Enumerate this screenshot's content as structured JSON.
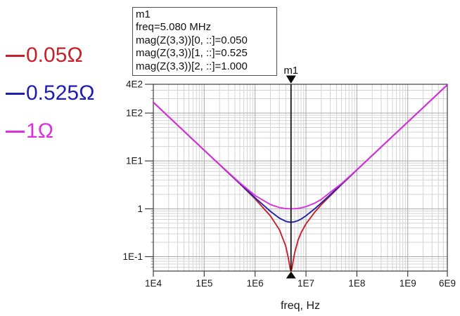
{
  "colors": {
    "grid_minor": "#d4d4d4",
    "grid_major": "#a8a8a8",
    "frame": "#3c3c3c",
    "tick": "#3c3c3c",
    "marker": "#0d0d0d",
    "text": "#1a1a1a"
  },
  "legend": {
    "items": [
      {
        "label": "0.05Ω",
        "color": "#c81f28"
      },
      {
        "label": "0.525Ω",
        "color": "#1e1eb0"
      },
      {
        "label": "1Ω",
        "color": "#dd30dd"
      }
    ]
  },
  "marker_box": {
    "lines": [
      "m1",
      "freq=5.080 MHz",
      "mag(Z(3,3))[0, ::]=0.050",
      "mag(Z(3,3))[1, ::]=0.525",
      "mag(Z(3,3))[2, ::]=1.000"
    ]
  },
  "chart_data": {
    "type": "line",
    "title": "",
    "xlabel": "freq, Hz",
    "ylabel": "",
    "x_scale": "log",
    "y_scale": "log",
    "xlim": [
      10000,
      6000000000
    ],
    "ylim": [
      0.05,
      400
    ],
    "grid": true,
    "legend_position": "left-outside",
    "x_ticks": [
      {
        "label": "1E4",
        "value": 10000
      },
      {
        "label": "1E5",
        "value": 100000
      },
      {
        "label": "1E6",
        "value": 1000000
      },
      {
        "label": "1E7",
        "value": 10000000
      },
      {
        "label": "1E8",
        "value": 100000000
      },
      {
        "label": "1E9",
        "value": 1000000000
      },
      {
        "label": "6E9",
        "value": 6000000000
      }
    ],
    "y_ticks": [
      {
        "label": "4E2",
        "value": 400
      },
      {
        "label": "1E2",
        "value": 100
      },
      {
        "label": "1E1",
        "value": 10
      },
      {
        "label": "1",
        "value": 1
      },
      {
        "label": "1E-1",
        "value": 0.1
      }
    ],
    "x": [
      10000,
      20000,
      50000,
      100000,
      200000,
      500000,
      1000000,
      2000000,
      3000000,
      4000000,
      4500000,
      4900000,
      5080000,
      5300000,
      5600000,
      6000000,
      7000000,
      8000000,
      10000000,
      15000000,
      20000000,
      50000000,
      100000000,
      200000000,
      500000000,
      1000000000,
      2000000000,
      6000000000
    ],
    "series": [
      {
        "name": "mag(Z(3,3)) R=0.05 ohm",
        "legend": "0.05Ω",
        "color": "#c8202a",
        "values": [
          167.6,
          83.8,
          33.5,
          16.76,
          8.38,
          3.35,
          1.612,
          0.71,
          0.367,
          0.167,
          0.0945,
          0.0554,
          0.05,
          0.0573,
          0.0815,
          0.121,
          0.221,
          0.314,
          0.485,
          0.864,
          1.216,
          3.215,
          6.479,
          12.99,
          32.48,
          64.96,
          129.9,
          389.8
        ]
      },
      {
        "name": "mag(Z(3,3)) R=0.525 ohm",
        "legend": "0.525Ω",
        "color": "#2222ae",
        "values": [
          167.6,
          83.8,
          33.5,
          16.77,
          8.4,
          3.39,
          1.695,
          0.882,
          0.639,
          0.549,
          0.531,
          0.526,
          0.525,
          0.526,
          0.529,
          0.537,
          0.567,
          0.61,
          0.713,
          1.01,
          1.324,
          3.257,
          6.5,
          13.0,
          32.48,
          64.96,
          129.9,
          389.8
        ]
      },
      {
        "name": "mag(Z(3,3)) R=1.0 ohm",
        "legend": "1Ω",
        "color": "#dd2edd",
        "values": [
          167.6,
          83.8,
          33.5,
          16.79,
          8.44,
          3.5,
          1.896,
          1.225,
          1.064,
          1.013,
          1.003,
          1.0,
          1.0,
          1.0,
          1.002,
          1.006,
          1.023,
          1.047,
          1.11,
          1.321,
          1.574,
          3.367,
          6.556,
          13.03,
          32.5,
          64.97,
          129.9,
          389.8
        ]
      }
    ],
    "marker": {
      "label": "m1",
      "freq": 5080000
    }
  }
}
